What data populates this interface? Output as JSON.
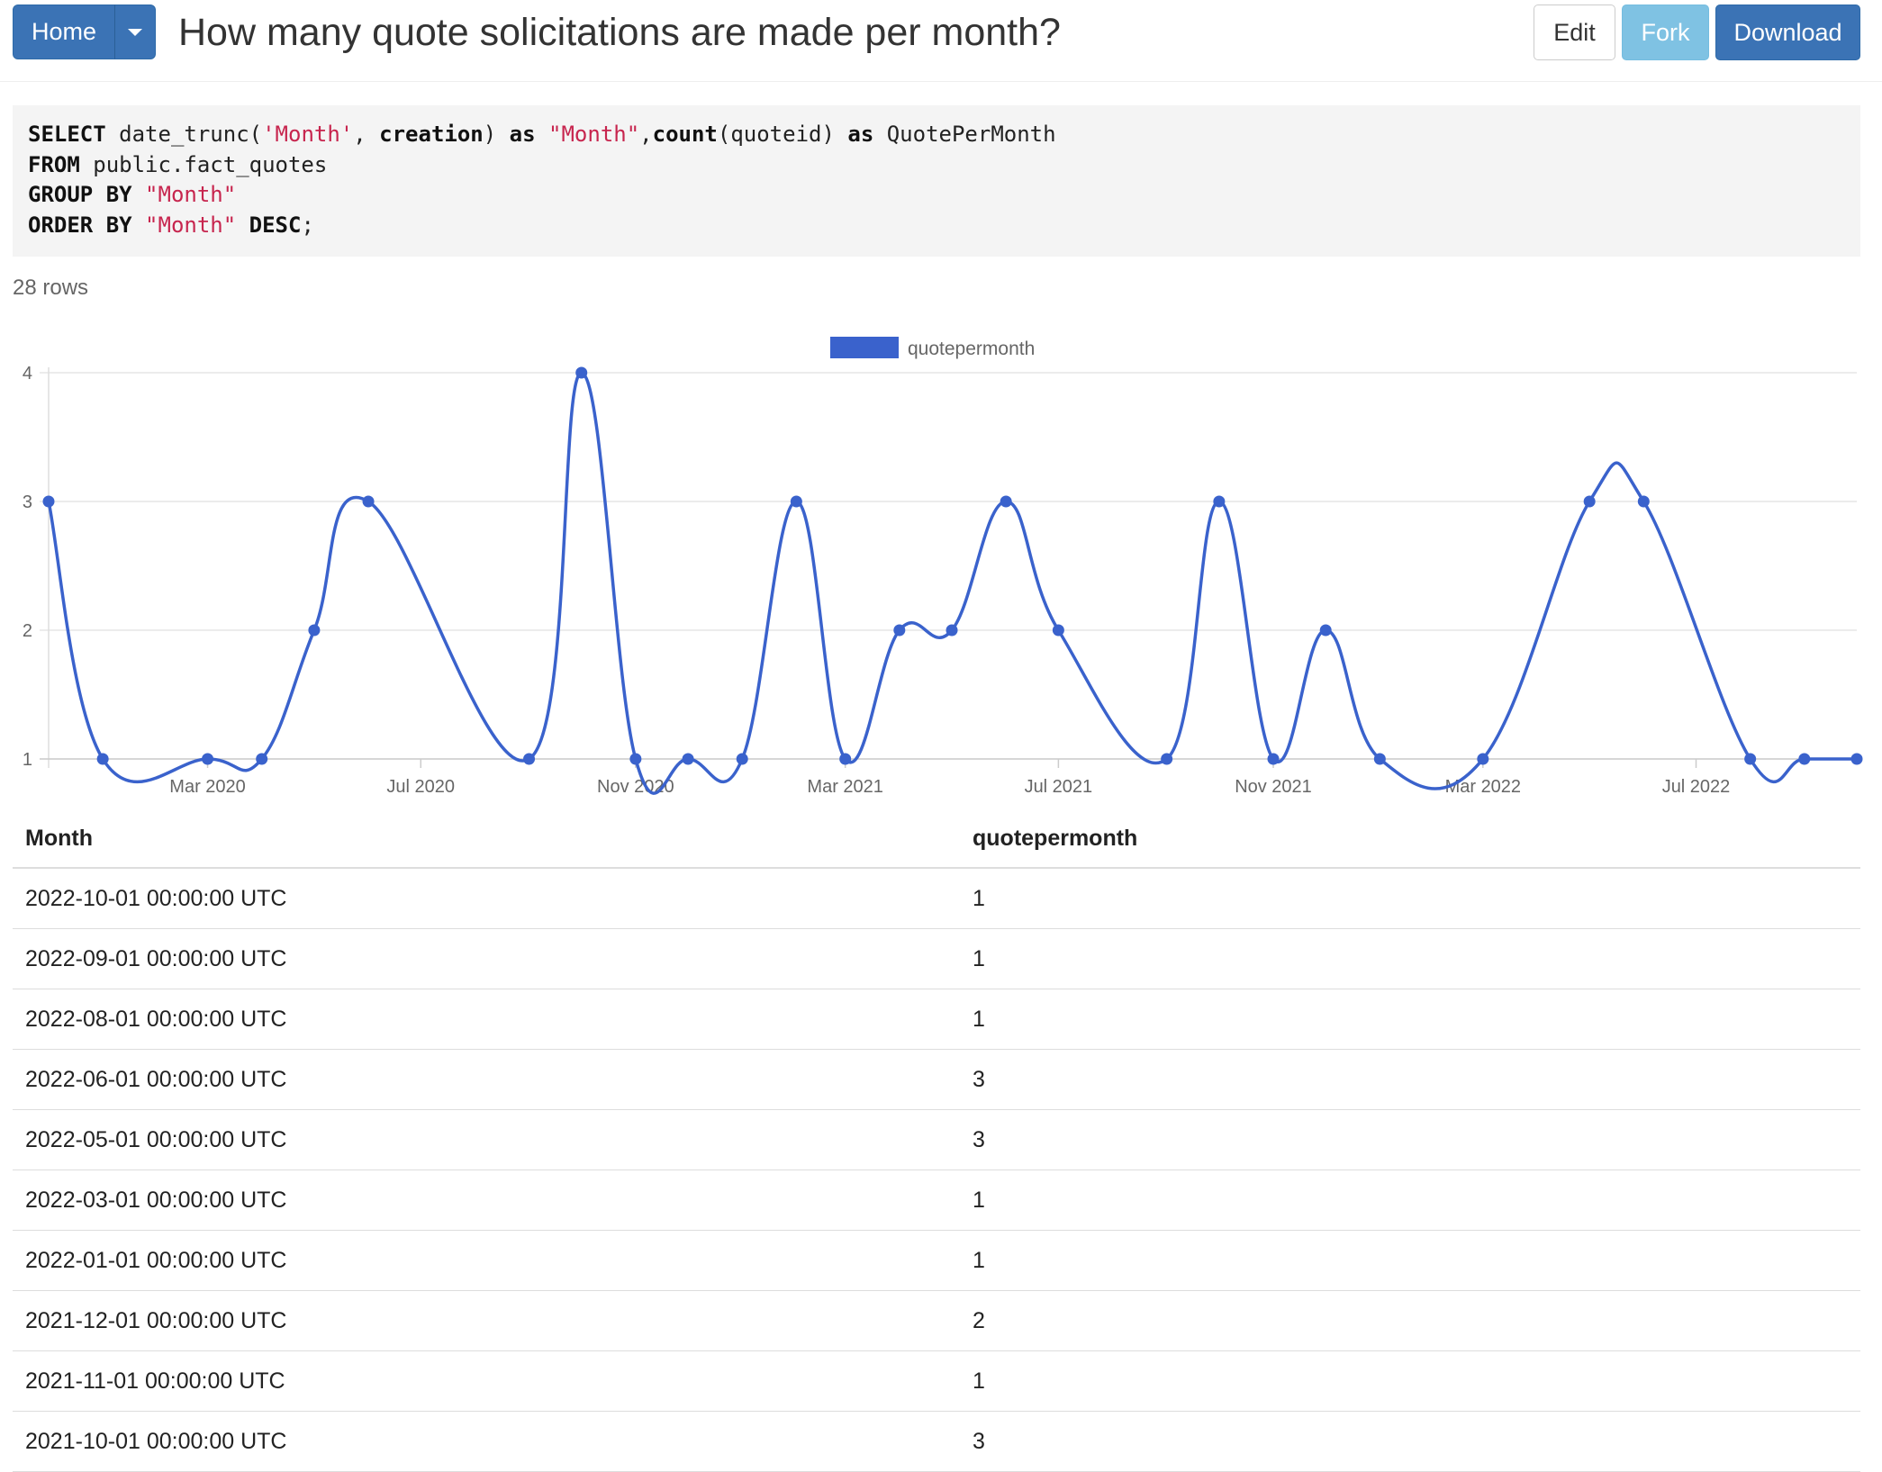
{
  "header": {
    "home_label": "Home",
    "title": "How many quote solicitations are made per month?",
    "edit_label": "Edit",
    "fork_label": "Fork",
    "download_label": "Download"
  },
  "sql": {
    "lines": [
      [
        [
          "kw",
          "SELECT"
        ],
        [
          "t",
          " date_trunc("
        ],
        [
          "str",
          "'Month'"
        ],
        [
          "t",
          ", "
        ],
        [
          "kw",
          "creation"
        ],
        [
          "t",
          ") "
        ],
        [
          "kw",
          "as"
        ],
        [
          "t",
          " "
        ],
        [
          "str",
          "\"Month\""
        ],
        [
          "t",
          ","
        ],
        [
          "kw",
          "count"
        ],
        [
          "t",
          "(quoteid) "
        ],
        [
          "kw",
          "as"
        ],
        [
          "t",
          " QuotePerMonth"
        ]
      ],
      [
        [
          "kw",
          "FROM"
        ],
        [
          "t",
          " public.fact_quotes"
        ]
      ],
      [
        [
          "kw",
          "GROUP BY"
        ],
        [
          "t",
          " "
        ],
        [
          "str",
          "\"Month\""
        ]
      ],
      [
        [
          "kw",
          "ORDER BY"
        ],
        [
          "t",
          " "
        ],
        [
          "str",
          "\"Month\""
        ],
        [
          "t",
          " "
        ],
        [
          "kw",
          "DESC"
        ],
        [
          "t",
          ";"
        ]
      ]
    ]
  },
  "row_count": "28 rows",
  "colors": {
    "series": "#3a62cc",
    "grid": "#e6e6e6",
    "primary_button": "#3b73b5",
    "fork_button": "#7fc2e3"
  },
  "chart_data": {
    "type": "line",
    "legend": "top-center",
    "grid": true,
    "smooth": true,
    "series": [
      {
        "name": "quotepermonth",
        "points": [
          [
            "2019-12-01",
            3
          ],
          [
            "2020-01-01",
            1
          ],
          [
            "2020-03-01",
            1
          ],
          [
            "2020-04-01",
            1
          ],
          [
            "2020-05-01",
            2
          ],
          [
            "2020-06-01",
            3
          ],
          [
            "2020-09-01",
            1
          ],
          [
            "2020-10-01",
            4
          ],
          [
            "2020-11-01",
            1
          ],
          [
            "2020-12-01",
            1
          ],
          [
            "2021-01-01",
            1
          ],
          [
            "2021-02-01",
            3
          ],
          [
            "2021-03-01",
            1
          ],
          [
            "2021-04-01",
            2
          ],
          [
            "2021-05-01",
            2
          ],
          [
            "2021-06-01",
            3
          ],
          [
            "2021-07-01",
            2
          ],
          [
            "2021-09-01",
            1
          ],
          [
            "2021-10-01",
            3
          ],
          [
            "2021-11-01",
            1
          ],
          [
            "2021-12-01",
            2
          ],
          [
            "2022-01-01",
            1
          ],
          [
            "2022-03-01",
            1
          ],
          [
            "2022-05-01",
            3
          ],
          [
            "2022-06-01",
            3
          ],
          [
            "2022-08-01",
            1
          ],
          [
            "2022-09-01",
            1
          ],
          [
            "2022-10-01",
            1
          ]
        ]
      }
    ],
    "x_ticks": [
      "Mar 2020",
      "Jul 2020",
      "Nov 2020",
      "Mar 2021",
      "Jul 2021",
      "Nov 2021",
      "Mar 2022",
      "Jul 2022"
    ],
    "y_ticks": [
      1,
      2,
      3,
      4
    ],
    "ylim": [
      1,
      4
    ]
  },
  "table": {
    "columns": [
      "Month",
      "quotepermonth"
    ],
    "rows": [
      [
        "2022-10-01 00:00:00 UTC",
        "1"
      ],
      [
        "2022-09-01 00:00:00 UTC",
        "1"
      ],
      [
        "2022-08-01 00:00:00 UTC",
        "1"
      ],
      [
        "2022-06-01 00:00:00 UTC",
        "3"
      ],
      [
        "2022-05-01 00:00:00 UTC",
        "3"
      ],
      [
        "2022-03-01 00:00:00 UTC",
        "1"
      ],
      [
        "2022-01-01 00:00:00 UTC",
        "1"
      ],
      [
        "2021-12-01 00:00:00 UTC",
        "2"
      ],
      [
        "2021-11-01 00:00:00 UTC",
        "1"
      ],
      [
        "2021-10-01 00:00:00 UTC",
        "3"
      ]
    ]
  }
}
